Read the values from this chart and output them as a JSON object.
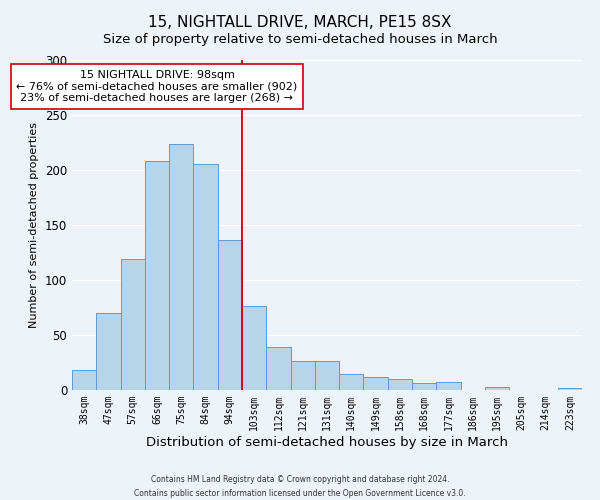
{
  "title": "15, NIGHTALL DRIVE, MARCH, PE15 8SX",
  "subtitle": "Size of property relative to semi-detached houses in March",
  "xlabel": "Distribution of semi-detached houses by size in March",
  "ylabel": "Number of semi-detached properties",
  "bar_labels": [
    "38sqm",
    "47sqm",
    "57sqm",
    "66sqm",
    "75sqm",
    "84sqm",
    "94sqm",
    "103sqm",
    "112sqm",
    "121sqm",
    "131sqm",
    "140sqm",
    "149sqm",
    "158sqm",
    "168sqm",
    "177sqm",
    "186sqm",
    "195sqm",
    "205sqm",
    "214sqm",
    "223sqm"
  ],
  "bar_values": [
    18,
    70,
    119,
    208,
    224,
    205,
    136,
    76,
    39,
    26,
    26,
    15,
    12,
    10,
    6,
    7,
    0,
    3,
    0,
    0,
    2
  ],
  "bar_color": "#b8d4e8",
  "bar_edge_color": "#5b9bd5",
  "vline_x": 6.5,
  "vline_color": "#cc0000",
  "annotation_title": "15 NIGHTALL DRIVE: 98sqm",
  "annotation_line1": "← 76% of semi-detached houses are smaller (902)",
  "annotation_line2": "23% of semi-detached houses are larger (268) →",
  "annotation_box_color": "#ffffff",
  "annotation_box_edge": "#cc0000",
  "ylim": [
    0,
    300
  ],
  "yticks": [
    0,
    50,
    100,
    150,
    200,
    250,
    300
  ],
  "footer1": "Contains HM Land Registry data © Crown copyright and database right 2024.",
  "footer2": "Contains public sector information licensed under the Open Government Licence v3.0.",
  "bg_color": "#eef2f9",
  "title_fontsize": 11,
  "subtitle_fontsize": 9.5
}
